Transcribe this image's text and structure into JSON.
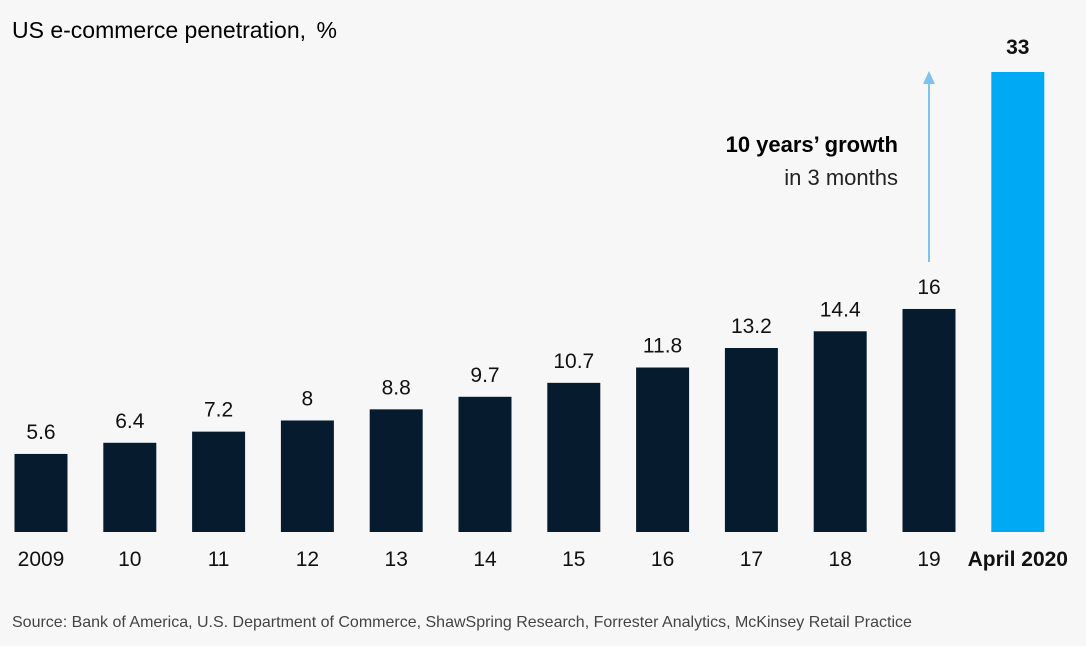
{
  "chart_data": {
    "type": "bar",
    "title": "US e-commerce penetration,",
    "unit": "%",
    "categories": [
      "2009",
      "10",
      "11",
      "12",
      "13",
      "14",
      "15",
      "16",
      "17",
      "18",
      "19",
      "April 2020"
    ],
    "values": [
      5.6,
      6.4,
      7.2,
      8,
      8.8,
      9.7,
      10.7,
      11.8,
      13.2,
      14.4,
      16,
      33
    ],
    "value_labels": [
      "5.6",
      "6.4",
      "7.2",
      "8",
      "8.8",
      "9.7",
      "10.7",
      "11.8",
      "13.2",
      "14.4",
      "16",
      "33"
    ],
    "highlight_index": 11,
    "ylim": [
      0,
      33
    ],
    "grid": false,
    "annotation": {
      "line1": "10 years’ growth",
      "line2": "in 3 months"
    },
    "source": "Source: Bank of America, U.S. Department of Commerce, ShawSpring Research, Forrester Analytics, McKinsey Retail Practice"
  },
  "colors": {
    "bar": "#061c2e",
    "highlight": "#00a9f4",
    "arrow": "#7ec2ee",
    "background": "#f7f7f7"
  }
}
